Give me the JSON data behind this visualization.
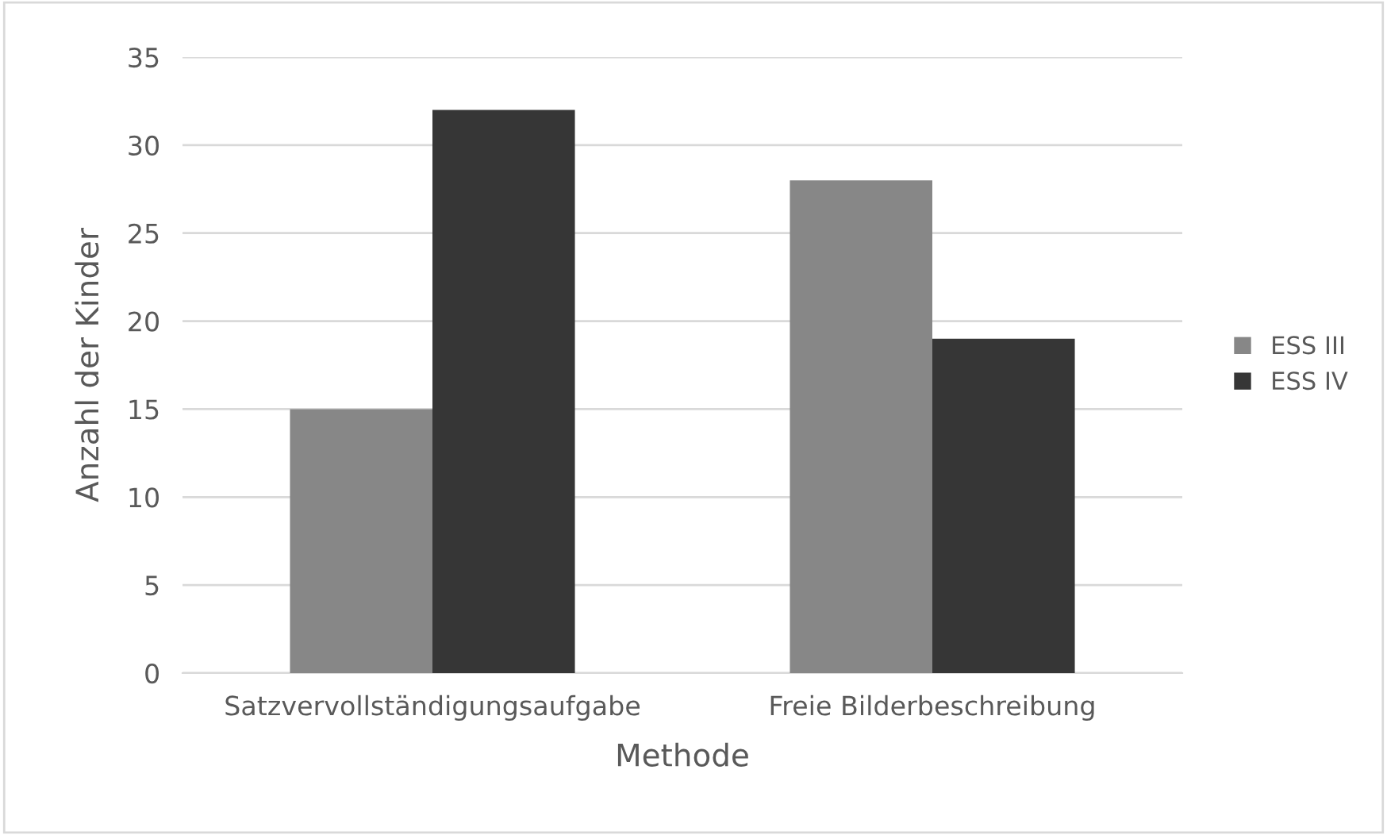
{
  "chart_data": {
    "type": "bar",
    "xlabel": "Methode",
    "ylabel": "Anzahl der Kinder",
    "categories": [
      "Satzvervollständigungsaufgabe",
      "Freie Bilderbeschreibung"
    ],
    "series": [
      {
        "name": "ESS III",
        "color": "#878787",
        "values": [
          15,
          28
        ]
      },
      {
        "name": "ESS IV",
        "color": "#363636",
        "values": [
          32,
          19
        ]
      }
    ],
    "ylim": [
      0,
      35
    ],
    "yticks": [
      0,
      5,
      10,
      15,
      20,
      25,
      30,
      35
    ],
    "grid": "y",
    "legend": "right"
  }
}
